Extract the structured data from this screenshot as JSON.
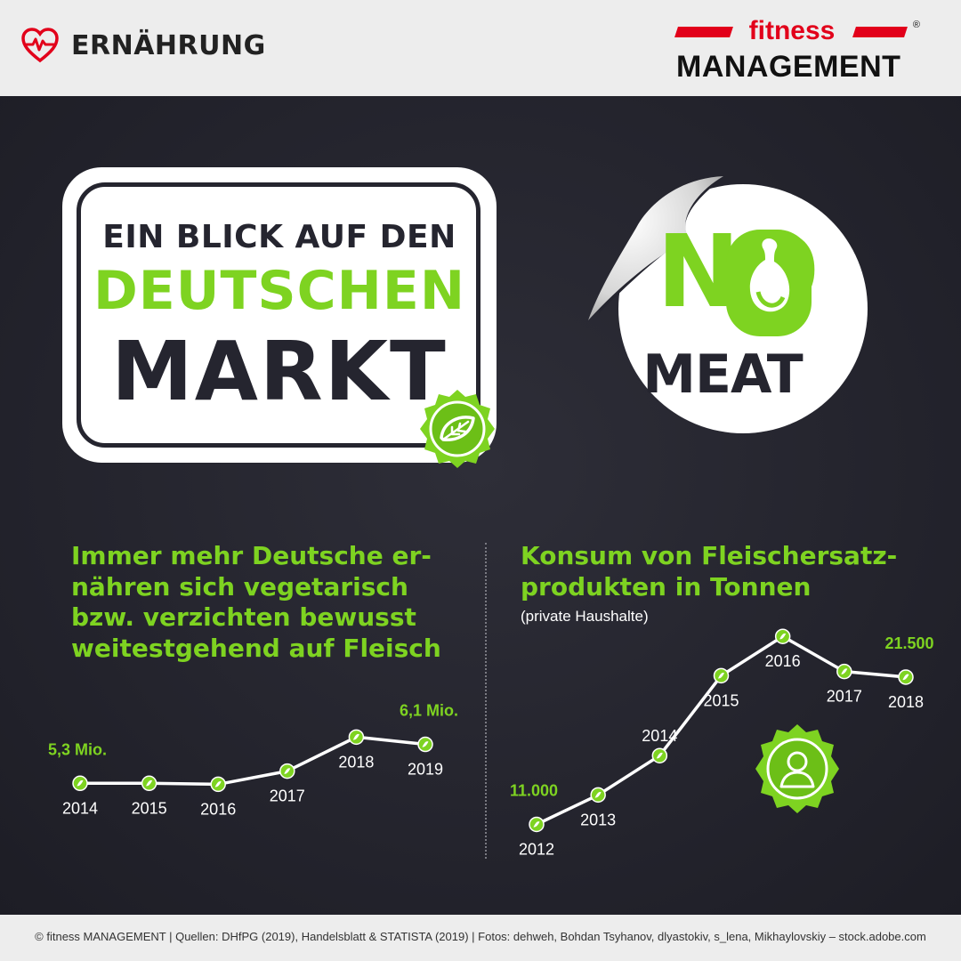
{
  "header": {
    "section_title": "ERNÄHRUNG",
    "brand_top": "fitness",
    "brand_bottom": "MANAGEMENT",
    "brand_reg": "®"
  },
  "title_card": {
    "line1": "EIN BLICK AUF DEN",
    "line2": "DEUTSCHEN",
    "line3": "MARKT"
  },
  "sticker": {
    "no": "NO",
    "meat": "MEAT"
  },
  "colors": {
    "accent_green": "#7ed321",
    "background_dark": "#25252f",
    "brand_red": "#e2001a"
  },
  "chart_data": [
    {
      "type": "line",
      "title": "Immer mehr Deutsche er- nähren sich vegetarisch bzw. verzichten bewusst weitestgehend auf Fleisch",
      "title_lines": [
        "Immer mehr Deutsche er-",
        "nähren sich vegetarisch",
        "bzw. verzichten bewusst",
        "weitestgehend auf Fleisch"
      ],
      "x": [
        "2014",
        "2015",
        "2016",
        "2017",
        "2018",
        "2019"
      ],
      "values": [
        5.3,
        5.3,
        5.28,
        5.55,
        6.25,
        6.1
      ],
      "value_labels": [
        {
          "index": 0,
          "text": "5,3 Mio."
        },
        {
          "index": 5,
          "text": "6,1 Mio."
        }
      ],
      "ylim": [
        4.5,
        7.5
      ],
      "grid": false
    },
    {
      "type": "line",
      "title": "Konsum von Fleischersatz- produkten in Tonnen",
      "title_lines": [
        "Konsum von Fleischersatz-",
        "produkten in Tonnen"
      ],
      "subtitle": "(private Haushalte)",
      "x": [
        "2012",
        "2013",
        "2014",
        "2015",
        "2016",
        "2017",
        "2018"
      ],
      "values": [
        11000,
        13100,
        15900,
        21600,
        24400,
        21900,
        21500
      ],
      "value_labels": [
        {
          "index": 0,
          "text": "11.000"
        },
        {
          "index": 6,
          "text": "21.500"
        }
      ],
      "ylim": [
        9000,
        26000
      ],
      "grid": false
    }
  ],
  "footer": {
    "credits": "© fitness MANAGEMENT | Quellen: DHfPG (2019), Handelsblatt & STATISTA (2019) | Fotos: dehweh, Bohdan Tsyhanov, dlyastokiv, s_lena, Mikhaylovskiy – stock.adobe.com"
  }
}
